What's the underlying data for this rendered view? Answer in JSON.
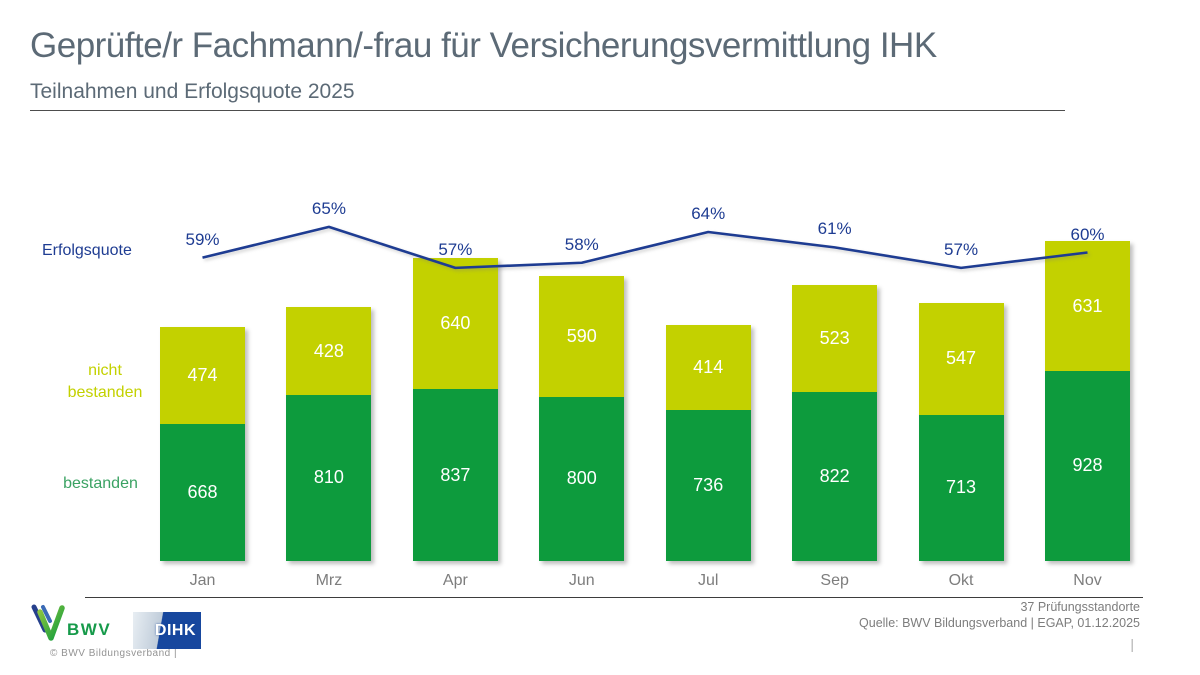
{
  "header": {
    "title": "Geprüfte/r Fachmann/-frau für Versicherungsvermittlung IHK",
    "subtitle": "Teilnahmen und Erfolgsquote 2025"
  },
  "chart_data": {
    "type": "bar",
    "subtype": "stacked-bars-with-line-overlay",
    "title": "Teilnahmen und Erfolgsquote 2025",
    "categories": [
      "Jan",
      "Mrz",
      "Apr",
      "Jun",
      "Jul",
      "Sep",
      "Okt",
      "Nov"
    ],
    "series": [
      {
        "name": "bestanden",
        "color": "#0d9b3d",
        "values": [
          668,
          810,
          837,
          800,
          736,
          822,
          713,
          928
        ]
      },
      {
        "name": "nicht bestanden",
        "color": "#c3d100",
        "values": [
          474,
          428,
          640,
          590,
          414,
          523,
          547,
          631
        ]
      }
    ],
    "line_series": {
      "name": "Erfolgsquote",
      "unit": "%",
      "color": "#1e3c92",
      "values": [
        59,
        65,
        57,
        58,
        64,
        61,
        57,
        60
      ]
    },
    "value_labels_shown": true,
    "legend_position": "left",
    "grid": false,
    "axis": {
      "x_labels_shown": true,
      "y_axis_shown": false
    }
  },
  "side_labels": {
    "line": "Erfolgsquote",
    "not_passed_line1": "nicht",
    "not_passed_line2": "bestanden",
    "passed": "bestanden"
  },
  "footer": {
    "note": "37 Prüfungsstandorte",
    "source": "Quelle: BWV Bildungsverband | EGAP, 01.12.2025",
    "copyright": "© BWV Bildungsverband |",
    "bwv_text": "BWV",
    "dihk_text": "DIHK",
    "page_marker": "|"
  },
  "colors": {
    "passed_green": "#0d9b3d",
    "not_passed_yellow": "#c3d100",
    "line_blue": "#1e3c92",
    "title_gray": "#5c6a76",
    "axis_gray": "#7d7d7d"
  }
}
